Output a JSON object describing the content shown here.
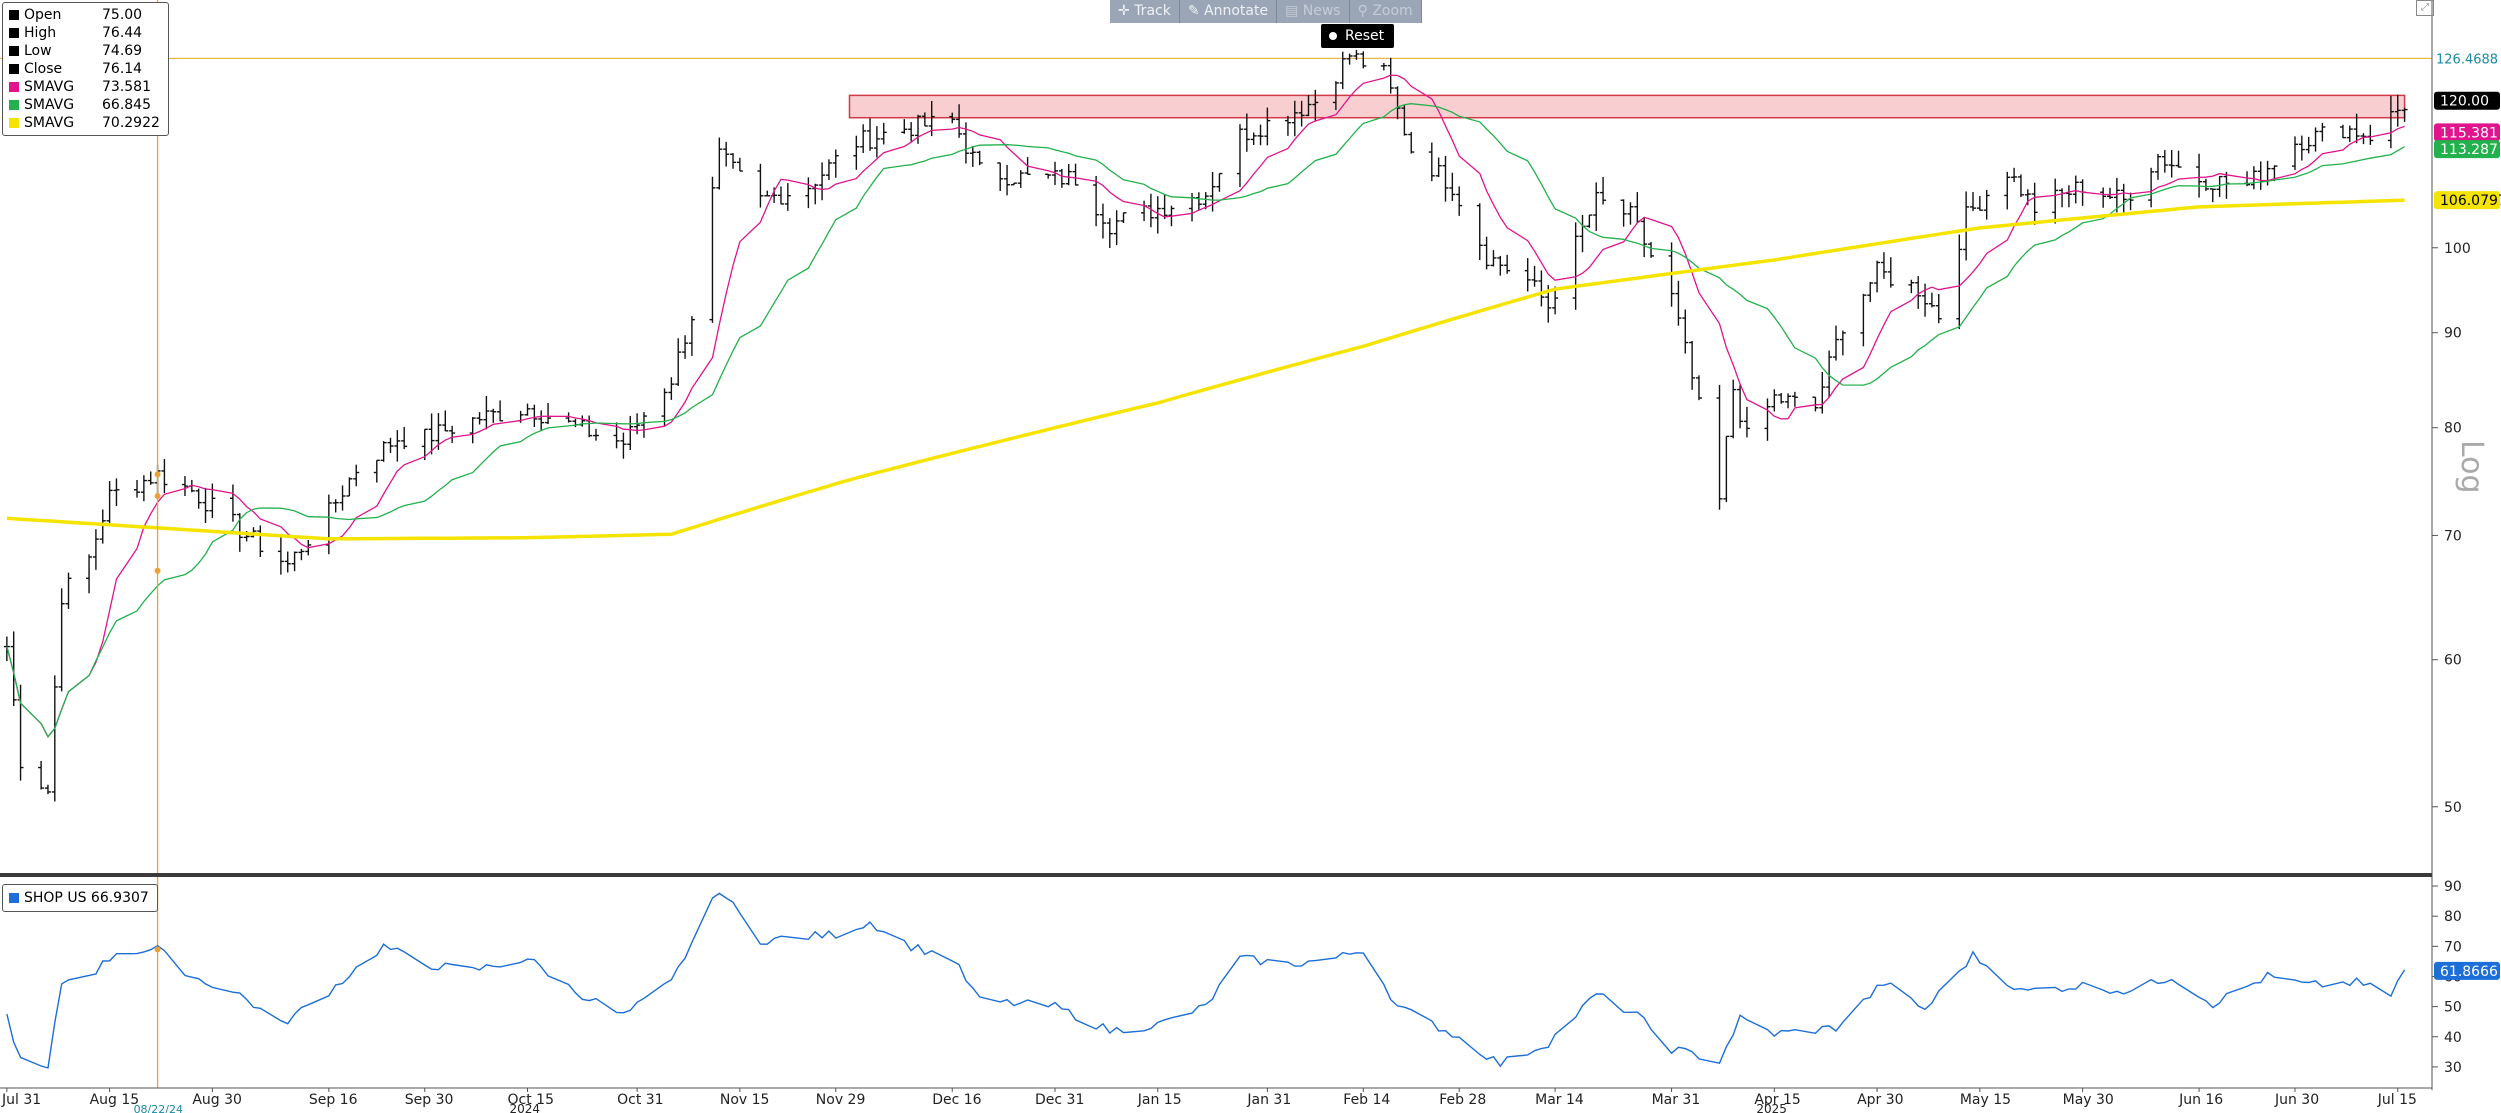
{
  "toolbar": {
    "track": "Track",
    "annotate": "Annotate",
    "news": "News",
    "zoom": "Zoom",
    "reset": "Reset"
  },
  "legend": {
    "rows": [
      {
        "label": "Open",
        "value": "75.00",
        "color": "#000000"
      },
      {
        "label": "High",
        "value": "76.44",
        "color": "#000000"
      },
      {
        "label": "Low",
        "value": "74.69",
        "color": "#000000"
      },
      {
        "label": "Close",
        "value": "76.14",
        "color": "#000000"
      },
      {
        "label": "SMAVG",
        "value": "73.581",
        "color": "#e0148c"
      },
      {
        "label": "SMAVG",
        "value": "66.845",
        "color": "#22b14c"
      },
      {
        "label": "SMAVG",
        "value": "70.2922",
        "color": "#f5e400"
      }
    ]
  },
  "rsi_legend": {
    "label": "SHOP US",
    "value": "66.9307",
    "color": "#1c6ed8"
  },
  "colors": {
    "sma_fast": "#e0148c",
    "sma_mid": "#22b14c",
    "sma_slow": "#f5e400",
    "rsi": "#1c6ed8",
    "crosshair": "#f0a030",
    "resistance_fill": "#f7c9cc",
    "resistance_edge": "#d23a48"
  },
  "chart_data": [
    {
      "type": "ohlc",
      "scale": "log",
      "ylabel": "Log",
      "ylim": [
        46,
        131
      ],
      "y_ticks": [
        50,
        60,
        70,
        80,
        90,
        100
      ],
      "x_tick_labels": [
        "Jul 31",
        "Aug 15",
        "Aug 30",
        "Sep 16",
        "Sep 30",
        "Oct 15",
        "Oct 31",
        "Nov 15",
        "Nov 29",
        "Dec 16",
        "Dec 31",
        "Jan 15",
        "Jan 31",
        "Feb 14",
        "Feb 28",
        "Mar 14",
        "Mar 31",
        "Apr 15",
        "Apr 30",
        "May 15",
        "May 30",
        "Jun 16",
        "Jun 30",
        "Jul 15"
      ],
      "year_labels": [
        "2024",
        "2025"
      ],
      "crosshair_date": "Aug 22 2024",
      "crosshair_date_label": "08/22/24",
      "horizontal_line": {
        "value": 126.4688,
        "label": "126.4688"
      },
      "resistance_zone": {
        "from": "Dec 1 2024",
        "to": "Jul 16 2025",
        "low": 117.5,
        "high": 120.8
      },
      "price_labels": [
        {
          "value": 120.0,
          "text": "120.00",
          "bg": "#000000",
          "fg": "#ffffff"
        },
        {
          "value": 115.381,
          "text": "115.381",
          "bg": "#e0148c",
          "fg": "#ffffff"
        },
        {
          "value": 113.287,
          "text": "113.287",
          "bg": "#22b14c",
          "fg": "#ffffff"
        },
        {
          "value": 106.0797,
          "text": "106.0797",
          "bg": "#f5e400",
          "fg": "#000000"
        }
      ],
      "close_anchors": [
        [
          "2024-07-31",
          61
        ],
        [
          "2024-08-02",
          53
        ],
        [
          "2024-08-06",
          51
        ],
        [
          "2024-08-08",
          65
        ],
        [
          "2024-08-12",
          68
        ],
        [
          "2024-08-15",
          73.5
        ],
        [
          "2024-08-22",
          75.5
        ],
        [
          "2024-08-27",
          74
        ],
        [
          "2024-09-04",
          70
        ],
        [
          "2024-09-10",
          67.5
        ],
        [
          "2024-09-16",
          72
        ],
        [
          "2024-09-20",
          76
        ],
        [
          "2024-09-26",
          79
        ],
        [
          "2024-09-30",
          79
        ],
        [
          "2024-10-08",
          81
        ],
        [
          "2024-10-15",
          82
        ],
        [
          "2024-10-22",
          80
        ],
        [
          "2024-10-29",
          78.5
        ],
        [
          "2024-11-05",
          85
        ],
        [
          "2024-11-08",
          92
        ],
        [
          "2024-11-12",
          112
        ],
        [
          "2024-11-18",
          106
        ],
        [
          "2024-11-25",
          108
        ],
        [
          "2024-12-02",
          114
        ],
        [
          "2024-12-09",
          116
        ],
        [
          "2024-12-16",
          117
        ],
        [
          "2024-12-20",
          110
        ],
        [
          "2024-12-27",
          109
        ],
        [
          "2025-01-03",
          109
        ],
        [
          "2025-01-08",
          103
        ],
        [
          "2025-01-15",
          105
        ],
        [
          "2025-01-22",
          107
        ],
        [
          "2025-01-27",
          115
        ],
        [
          "2025-02-03",
          118
        ],
        [
          "2025-02-07",
          120
        ],
        [
          "2025-02-12",
          127
        ],
        [
          "2025-02-17",
          124
        ],
        [
          "2025-02-21",
          113
        ],
        [
          "2025-02-27",
          108
        ],
        [
          "2025-03-04",
          99
        ],
        [
          "2025-03-10",
          96
        ],
        [
          "2025-03-13",
          93
        ],
        [
          "2025-03-20",
          106
        ],
        [
          "2025-03-25",
          104
        ],
        [
          "2025-03-31",
          94
        ],
        [
          "2025-04-03",
          85
        ],
        [
          "2025-04-07",
          73
        ],
        [
          "2025-04-09",
          84
        ],
        [
          "2025-04-11",
          79
        ],
        [
          "2025-04-15",
          83
        ],
        [
          "2025-04-21",
          82
        ],
        [
          "2025-04-25",
          91
        ],
        [
          "2025-04-30",
          97
        ],
        [
          "2025-05-06",
          95
        ],
        [
          "2025-05-09",
          92
        ],
        [
          "2025-05-13",
          104
        ],
        [
          "2025-05-19",
          110
        ],
        [
          "2025-05-23",
          105
        ],
        [
          "2025-05-30",
          108
        ],
        [
          "2025-06-05",
          106
        ],
        [
          "2025-06-10",
          112
        ],
        [
          "2025-06-16",
          109
        ],
        [
          "2025-06-23",
          108
        ],
        [
          "2025-06-30",
          114
        ],
        [
          "2025-07-07",
          116
        ],
        [
          "2025-07-11",
          115
        ],
        [
          "2025-07-16",
          119.5
        ]
      ]
    },
    {
      "type": "line",
      "series": [
        {
          "name": "SHOP US",
          "last": 61.8666
        }
      ],
      "ylim": [
        24,
        92
      ],
      "y_ticks": [
        30,
        40,
        50,
        60,
        70,
        80,
        90
      ],
      "anchors": [
        [
          "2024-07-31",
          47
        ],
        [
          "2024-08-02",
          32
        ],
        [
          "2024-08-06",
          29
        ],
        [
          "2024-08-08",
          58
        ],
        [
          "2024-08-13",
          62
        ],
        [
          "2024-08-16",
          68
        ],
        [
          "2024-08-22",
          69
        ],
        [
          "2024-08-27",
          60
        ],
        [
          "2024-09-03",
          54
        ],
        [
          "2024-09-09",
          44
        ],
        [
          "2024-09-16",
          55
        ],
        [
          "2024-09-24",
          70
        ],
        [
          "2024-09-30",
          64
        ],
        [
          "2024-10-07",
          62
        ],
        [
          "2024-10-15",
          66
        ],
        [
          "2024-10-22",
          55
        ],
        [
          "2024-10-29",
          47
        ],
        [
          "2024-11-05",
          58
        ],
        [
          "2024-11-12",
          89
        ],
        [
          "2024-11-18",
          72
        ],
        [
          "2024-11-29",
          74
        ],
        [
          "2024-12-04",
          78
        ],
        [
          "2024-12-10",
          70
        ],
        [
          "2024-12-16",
          66
        ],
        [
          "2024-12-20",
          52
        ],
        [
          "2024-12-31",
          50
        ],
        [
          "2025-01-08",
          42
        ],
        [
          "2025-01-15",
          44
        ],
        [
          "2025-01-22",
          50
        ],
        [
          "2025-01-27",
          66
        ],
        [
          "2025-02-03",
          64
        ],
        [
          "2025-02-10",
          66
        ],
        [
          "2025-02-14",
          69
        ],
        [
          "2025-02-19",
          50
        ],
        [
          "2025-02-27",
          41
        ],
        [
          "2025-03-06",
          31
        ],
        [
          "2025-03-13",
          38
        ],
        [
          "2025-03-20",
          54
        ],
        [
          "2025-03-26",
          47
        ],
        [
          "2025-03-31",
          36
        ],
        [
          "2025-04-07",
          32
        ],
        [
          "2025-04-10",
          46
        ],
        [
          "2025-04-15",
          41
        ],
        [
          "2025-04-24",
          43
        ],
        [
          "2025-05-01",
          58
        ],
        [
          "2025-05-07",
          49
        ],
        [
          "2025-05-14",
          67
        ],
        [
          "2025-05-21",
          55
        ],
        [
          "2025-05-30",
          57
        ],
        [
          "2025-06-06",
          55
        ],
        [
          "2025-06-12",
          60
        ],
        [
          "2025-06-18",
          51
        ],
        [
          "2025-06-26",
          60
        ],
        [
          "2025-07-02",
          57
        ],
        [
          "2025-07-09",
          58
        ],
        [
          "2025-07-14",
          54
        ],
        [
          "2025-07-16",
          62
        ]
      ]
    }
  ]
}
